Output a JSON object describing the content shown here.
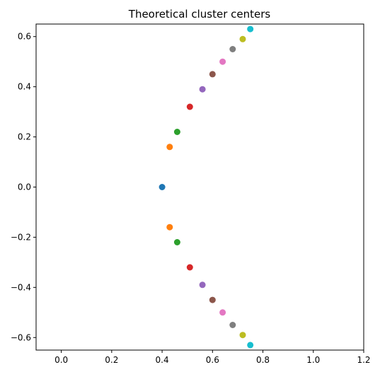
{
  "chart_data": {
    "type": "scatter",
    "title": "Theoretical cluster centers",
    "xlabel": "",
    "ylabel": "",
    "xlim": [
      -0.1,
      1.2
    ],
    "ylim": [
      -0.65,
      0.65
    ],
    "xticks": [
      0.0,
      0.2,
      0.4,
      0.6,
      0.8,
      1.0,
      1.2
    ],
    "xtick_labels": [
      "0.0",
      "0.2",
      "0.4",
      "0.6",
      "0.8",
      "1.0",
      "1.2"
    ],
    "yticks": [
      0.6,
      0.4,
      0.2,
      0.0,
      -0.2,
      -0.4,
      -0.6
    ],
    "ytick_labels": [
      "0.6",
      "0.4",
      "0.2",
      "0.0",
      "−0.2",
      "−0.4",
      "−0.6"
    ],
    "grid": false,
    "legend": false,
    "points": [
      {
        "x": 0.4,
        "y": 0.0,
        "color": "#1f77b4"
      },
      {
        "x": 0.43,
        "y": 0.16,
        "color": "#ff7f0e"
      },
      {
        "x": 0.43,
        "y": -0.16,
        "color": "#ff7f0e"
      },
      {
        "x": 0.46,
        "y": 0.22,
        "color": "#2ca02c"
      },
      {
        "x": 0.46,
        "y": -0.22,
        "color": "#2ca02c"
      },
      {
        "x": 0.51,
        "y": 0.32,
        "color": "#d62728"
      },
      {
        "x": 0.51,
        "y": -0.32,
        "color": "#d62728"
      },
      {
        "x": 0.56,
        "y": 0.39,
        "color": "#9467bd"
      },
      {
        "x": 0.56,
        "y": -0.39,
        "color": "#9467bd"
      },
      {
        "x": 0.6,
        "y": 0.45,
        "color": "#8c564b"
      },
      {
        "x": 0.6,
        "y": -0.45,
        "color": "#8c564b"
      },
      {
        "x": 0.64,
        "y": 0.5,
        "color": "#e377c2"
      },
      {
        "x": 0.64,
        "y": -0.5,
        "color": "#e377c2"
      },
      {
        "x": 0.68,
        "y": 0.55,
        "color": "#7f7f7f"
      },
      {
        "x": 0.68,
        "y": -0.55,
        "color": "#7f7f7f"
      },
      {
        "x": 0.72,
        "y": 0.59,
        "color": "#bcbd22"
      },
      {
        "x": 0.72,
        "y": -0.59,
        "color": "#bcbd22"
      },
      {
        "x": 0.75,
        "y": 0.63,
        "color": "#17becf"
      },
      {
        "x": 0.75,
        "y": -0.63,
        "color": "#17becf"
      }
    ]
  }
}
